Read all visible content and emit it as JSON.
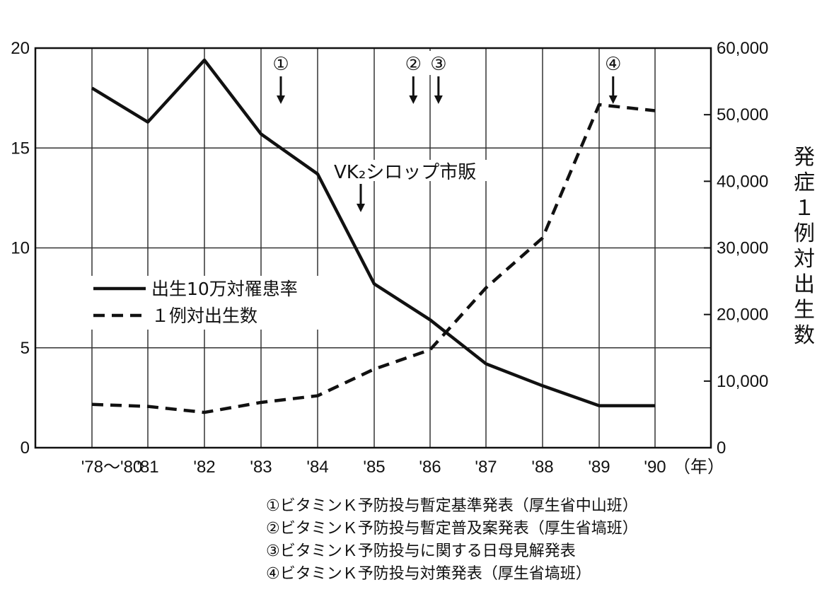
{
  "chart_data": {
    "type": "line",
    "title": "",
    "categories": [
      "'78～'80",
      "'81",
      "'82",
      "'83",
      "'84",
      "'85",
      "'86",
      "'87",
      "'88",
      "'89",
      "'90"
    ],
    "x_unit": "（年）",
    "y_left": {
      "ylim": [
        0,
        20
      ],
      "ticks": [
        "0",
        "5",
        "10",
        "15",
        "20"
      ],
      "label": ""
    },
    "y_right": {
      "ylim": [
        0,
        60000
      ],
      "ticks": [
        "0",
        "10,000",
        "20,000",
        "30,000",
        "40,000",
        "50,000",
        "60,000"
      ],
      "label": "発症１例対出生数"
    },
    "grid": true,
    "legend_position": "left-middle",
    "series": [
      {
        "name": "出生10万対罹患率",
        "style": "solid",
        "axis": "left",
        "values": [
          18.0,
          16.3,
          19.4,
          15.7,
          13.7,
          8.2,
          6.4,
          4.2,
          3.1,
          2.1,
          2.1
        ]
      },
      {
        "name": "１例対出生数",
        "style": "dashed",
        "axis": "right",
        "values": [
          6500,
          6200,
          5300,
          6800,
          7800,
          11800,
          14700,
          24000,
          31500,
          51500,
          50600
        ]
      }
    ],
    "annotations": [
      {
        "label": "①",
        "x": 3.35
      },
      {
        "label": "②",
        "x": 5.7
      },
      {
        "label": "③",
        "x": 6.15
      },
      {
        "label": "④",
        "x": 9.25
      },
      {
        "label": "VK₂シロップ市販",
        "x": 4.7
      }
    ]
  },
  "notes": [
    "①ビタミンＫ予防投与暫定基準発表（厚生省中山班）",
    "②ビタミンＫ予防投与暫定普及案発表（厚生省塙班）",
    "③ビタミンＫ予防投与に関する日母見解発表",
    "④ビタミンＫ予防投与対策発表（厚生省塙班）"
  ]
}
